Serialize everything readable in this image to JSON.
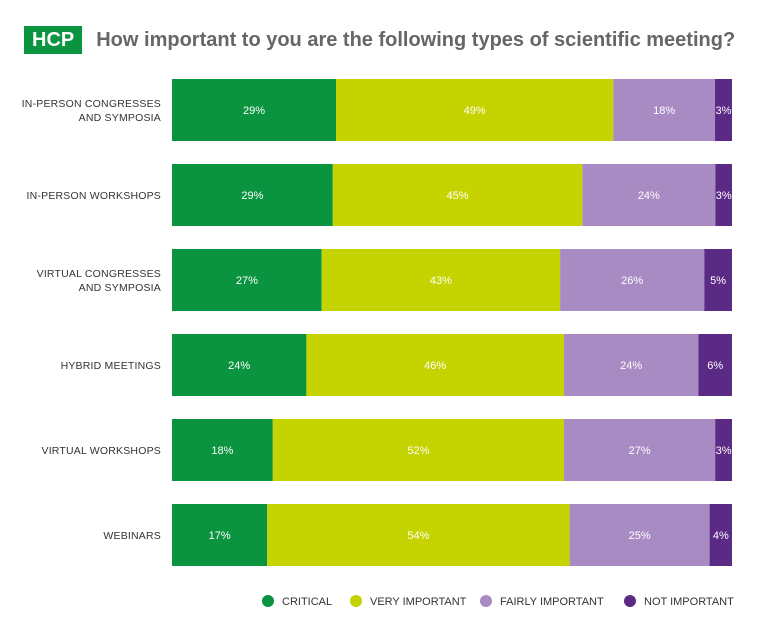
{
  "header": {
    "badge": "HCP",
    "title": "How important to you are the following types of scientific meeting?"
  },
  "colors": {
    "critical": "#0a9440",
    "very_important": "#c5d300",
    "fairly_important": "#a98bc4",
    "not_important": "#5a2a84",
    "badge": "#0a9440"
  },
  "chart_data": {
    "type": "bar",
    "orientation": "horizontal",
    "stacked": true,
    "categories": [
      [
        "IN-PERSON CONGRESSES",
        "AND SYMPOSIA"
      ],
      [
        "IN-PERSON WORKSHOPS"
      ],
      [
        "VIRTUAL CONGRESSES",
        "AND SYMPOSIA"
      ],
      [
        "HYBRID MEETINGS"
      ],
      [
        "VIRTUAL WORKSHOPS"
      ],
      [
        "WEBINARS"
      ]
    ],
    "series": [
      {
        "name": "CRITICAL",
        "color": "#0a9440",
        "values": [
          29,
          29,
          27,
          24,
          18,
          17
        ]
      },
      {
        "name": "VERY IMPORTANT",
        "color": "#c5d300",
        "values": [
          49,
          45,
          43,
          46,
          52,
          54
        ]
      },
      {
        "name": "FAIRLY IMPORTANT",
        "color": "#a98bc4",
        "values": [
          18,
          24,
          26,
          24,
          27,
          25
        ]
      },
      {
        "name": "NOT IMPORTANT",
        "color": "#5a2a84",
        "values": [
          3,
          3,
          5,
          6,
          3,
          4
        ]
      }
    ],
    "value_suffix": "%",
    "grid": false,
    "legend_position": "bottom-right"
  }
}
